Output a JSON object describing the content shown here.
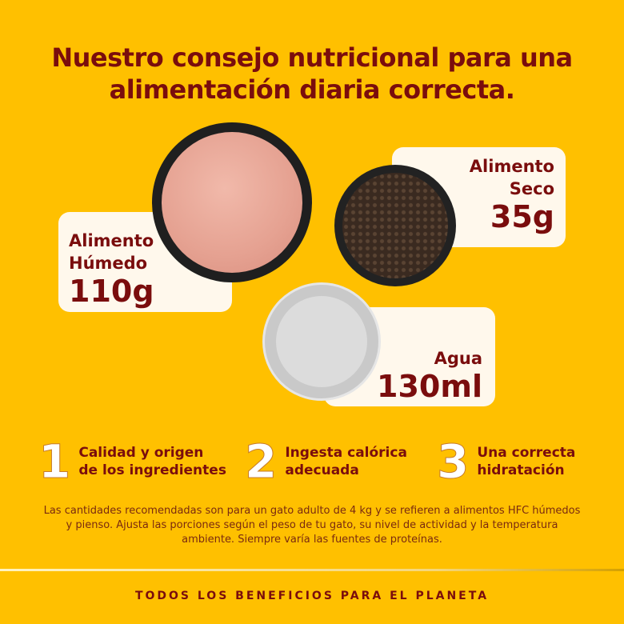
{
  "title_line1": "Nuestro consejo nutricional para una",
  "title_line2": "alimentación diaria correcta.",
  "cards": {
    "wet": {
      "label1": "Alimento",
      "label2": "Húmedo",
      "value": "110g"
    },
    "dry": {
      "label1": "Alimento",
      "label2": "Seco",
      "value": "35g"
    },
    "water": {
      "label": "Agua",
      "value": "130ml"
    }
  },
  "steps": [
    {
      "num": "1",
      "line1": "Calidad y origen",
      "line2": "de los ingredientes"
    },
    {
      "num": "2",
      "line1": "Ingesta calórica",
      "line2": "adecuada"
    },
    {
      "num": "3",
      "line1": "Una correcta",
      "line2": "hidratación"
    }
  ],
  "note": "Las cantidades recomendadas son para un gato adulto de 4 kg y se refieren a alimentos HFC húmedos y pienso. Ajusta las porciones según el peso de tu gato, su nivel de actividad y la temperatura ambiente. Siempre varía las fuentes de proteínas.",
  "footer": "TODOS LOS BENEFICIOS PARA EL PLANETA",
  "colors": {
    "background": "#FFC000",
    "text": "#7A0D0D"
  }
}
